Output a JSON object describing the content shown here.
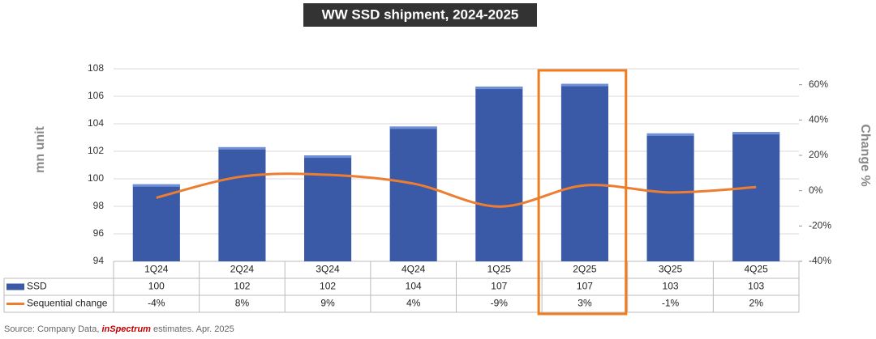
{
  "chart_data": {
    "type": "bar_line_table",
    "title": "WW SSD shipment, 2024-2025",
    "y_label": "mn unit",
    "y2_label": "Change %",
    "categories": [
      "1Q24",
      "2Q24",
      "3Q24",
      "4Q24",
      "1Q25",
      "2Q25",
      "3Q25",
      "4Q25"
    ],
    "series": [
      {
        "name": "SSD",
        "type": "bar",
        "color": "#3a5aa8",
        "values": [
          99.6,
          102.3,
          101.7,
          103.8,
          106.7,
          106.9,
          103.3,
          103.4
        ],
        "value_labels": [
          "100",
          "102",
          "102",
          "104",
          "107",
          "107",
          "103",
          "103"
        ]
      },
      {
        "name": "Sequential change",
        "type": "line",
        "axis": "y2",
        "color": "#ed7d31",
        "values": [
          -4,
          8,
          9,
          4,
          -9,
          3,
          -1,
          2
        ],
        "value_labels": [
          "-4%",
          "8%",
          "9%",
          "4%",
          "-9%",
          "3%",
          "-1%",
          "2%"
        ]
      }
    ],
    "ylim": [
      94,
      108
    ],
    "yticks": [
      94,
      96,
      98,
      100,
      102,
      104,
      106,
      108
    ],
    "y2lim": [
      -40,
      69
    ],
    "y2ticks": [
      {
        "value": -40,
        "label": "-40%"
      },
      {
        "value": -20,
        "label": "-20%"
      },
      {
        "value": 0,
        "label": "0%"
      },
      {
        "value": 20,
        "label": "20%"
      },
      {
        "value": 40,
        "label": "40%"
      },
      {
        "value": 60,
        "label": "60%"
      }
    ],
    "grid": true,
    "highlight": {
      "category": "2Q25",
      "color": "#f07c1e"
    },
    "source": {
      "prefix": "Source: Company Data, ",
      "brand": "inSpectrum",
      "suffix": " estimates.  Apr. 2025"
    }
  }
}
